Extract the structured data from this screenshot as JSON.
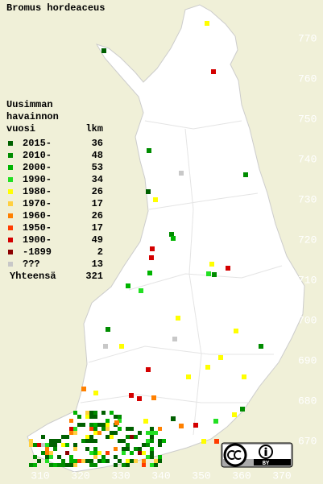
{
  "title": "Bromus hordeaceus",
  "legend": {
    "heading": [
      "Uusimman",
      "havainnon"
    ],
    "col_year": "vuosi",
    "col_count": "lkm",
    "rows": [
      {
        "label": "2015-",
        "count": 36,
        "color": "#006000"
      },
      {
        "label": "2010-",
        "count": 48,
        "color": "#008c00"
      },
      {
        "label": "2000-",
        "count": 53,
        "color": "#00b400"
      },
      {
        "label": "1990-",
        "count": 34,
        "color": "#22e022"
      },
      {
        "label": "1980-",
        "count": 26,
        "color": "#ffff00"
      },
      {
        "label": "1970-",
        "count": 17,
        "color": "#ffd040"
      },
      {
        "label": "1960-",
        "count": 26,
        "color": "#ff8000"
      },
      {
        "label": "1950-",
        "count": 17,
        "color": "#ff3c00"
      },
      {
        "label": "1900-",
        "count": 49,
        "color": "#d40000"
      },
      {
        "label": "-1899",
        "count": 2,
        "color": "#8c0000"
      },
      {
        "label": "???",
        "count": 13,
        "color": "#c8c8c8"
      }
    ],
    "total_label": "Yhteensä",
    "total": 321
  },
  "grid": {
    "north": [
      770,
      760,
      750,
      740,
      730,
      720,
      710,
      700,
      690,
      680,
      670
    ],
    "east": [
      310,
      320,
      330,
      340,
      350,
      360,
      370
    ]
  },
  "badge": "BY"
}
